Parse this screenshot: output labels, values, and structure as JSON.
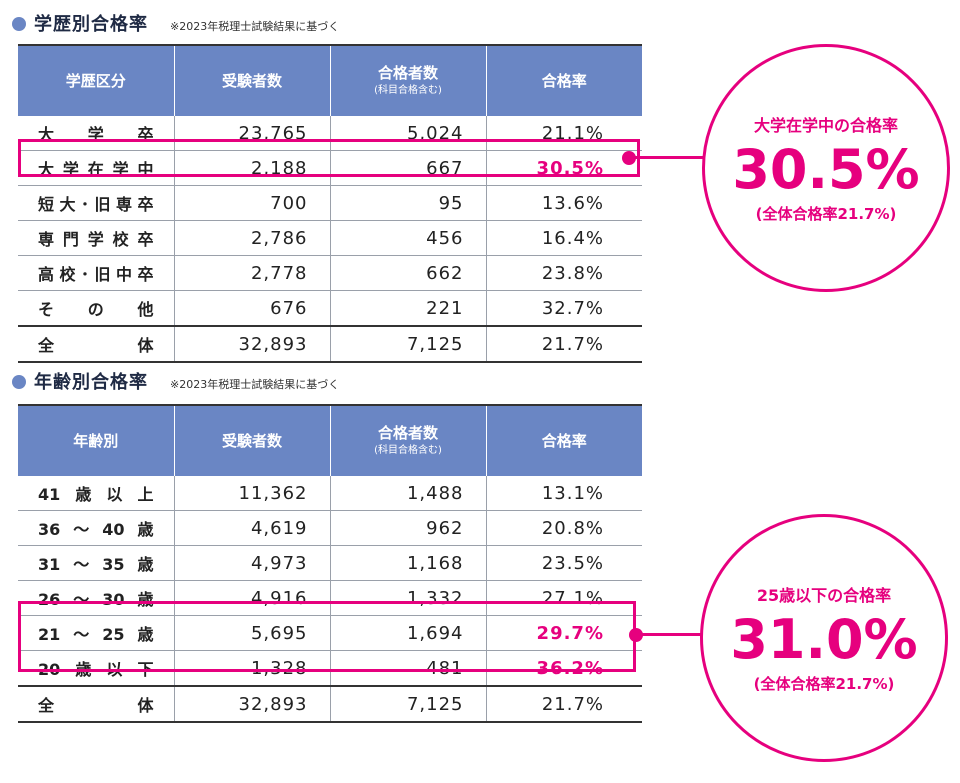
{
  "chart_data": [
    {
      "type": "table",
      "title": "学歴別合格率",
      "note": "※2023年税理士試験結果に基づく",
      "columns": [
        "学歴区分",
        "受験者数",
        "合格者数",
        "合格率"
      ],
      "column_subs": [
        "",
        "",
        "(科目合格含む)",
        ""
      ],
      "rows": [
        {
          "label": "大学卒",
          "examinees": "23,765",
          "passers": "5,024",
          "rate": "21.1%",
          "highlight": false
        },
        {
          "label": "大学在学中",
          "examinees": "2,188",
          "passers": "667",
          "rate": "30.5%",
          "highlight": true
        },
        {
          "label": "短大･旧専卒",
          "examinees": "700",
          "passers": "95",
          "rate": "13.6%",
          "highlight": false
        },
        {
          "label": "専門学校卒",
          "examinees": "2,786",
          "passers": "456",
          "rate": "16.4%",
          "highlight": false
        },
        {
          "label": "高校･旧中卒",
          "examinees": "2,778",
          "passers": "662",
          "rate": "23.8%",
          "highlight": false
        },
        {
          "label": "その他",
          "examinees": "676",
          "passers": "221",
          "rate": "32.7%",
          "highlight": false
        }
      ],
      "total": {
        "label": "全体",
        "examinees": "32,893",
        "passers": "7,125",
        "rate": "21.7%"
      },
      "callout": {
        "title": "大学在学中の合格率",
        "value": "30.5%",
        "sub": "(全体合格率21.7%)"
      }
    },
    {
      "type": "table",
      "title": "年齢別合格率",
      "note": "※2023年税理士試験結果に基づく",
      "columns": [
        "年齢別",
        "受験者数",
        "合格者数",
        "合格率"
      ],
      "column_subs": [
        "",
        "",
        "(科目合格含む)",
        ""
      ],
      "rows": [
        {
          "label": "41歳以上",
          "examinees": "11,362",
          "passers": "1,488",
          "rate": "13.1%",
          "highlight": false
        },
        {
          "label": "36～40歳",
          "examinees": "4,619",
          "passers": "962",
          "rate": "20.8%",
          "highlight": false
        },
        {
          "label": "31～35歳",
          "examinees": "4,973",
          "passers": "1,168",
          "rate": "23.5%",
          "highlight": false
        },
        {
          "label": "26～30歳",
          "examinees": "4,916",
          "passers": "1,332",
          "rate": "27.1%",
          "highlight": false
        },
        {
          "label": "21～25歳",
          "examinees": "5,695",
          "passers": "1,694",
          "rate": "29.7%",
          "highlight": true
        },
        {
          "label": "20歳以下",
          "examinees": "1,328",
          "passers": "481",
          "rate": "36.2%",
          "highlight": true
        }
      ],
      "total": {
        "label": "全体",
        "examinees": "32,893",
        "passers": "7,125",
        "rate": "21.7%"
      },
      "callout": {
        "title": "25歳以下の合格率",
        "value": "31.0%",
        "sub": "(全体合格率21.7%)"
      }
    }
  ],
  "colors": {
    "header_bg": "#6a86c4",
    "accent": "#e6007e",
    "title": "#1f2a44"
  }
}
